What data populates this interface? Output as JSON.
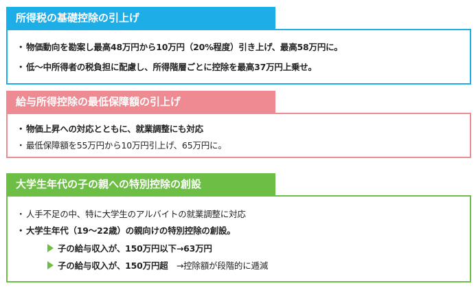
{
  "bullet": "・",
  "s1": {
    "title": "所得税の基礎控除の引上げ",
    "line1": "物価動向を勘案し最高48万円から10万円（20%程度）引き上げ、最高58万円に。",
    "line2": "低～中所得者の税負担に配慮し、所得階層ごとに控除を最高37万円上乗せ。"
  },
  "s2": {
    "title": "給与所得控除の最低保障額の引上げ",
    "line1": "物価上昇への対応とともに、就業調整にも対応",
    "line2": "最低保障額を55万円から10万円引上げ、65万円に。"
  },
  "s3": {
    "title": "大学生年代の子の親への特別控除の創設",
    "line1": "人手不足の中、特に大学生のアルバイトの就業調整に対応",
    "line2": "大学生年代（19～22歳）の親向けの特別控除の創設。",
    "sub1": "子の給与収入が、150万円以下→63万円",
    "sub2_a": "子の給与収入が、150万円超　",
    "sub2_b": "→控除額が段階的に逓減"
  },
  "colors": {
    "blue": "#1daee8",
    "pink": "#ee8b92",
    "green": "#6cbe45"
  }
}
